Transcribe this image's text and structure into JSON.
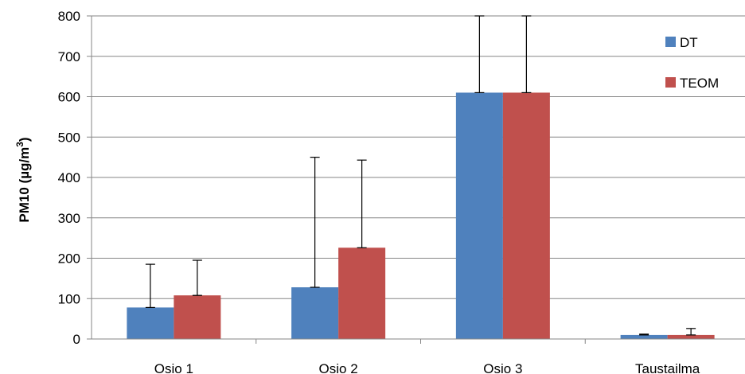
{
  "chart_data": {
    "type": "bar",
    "title": "",
    "xlabel": "",
    "ylabel": "PM10 (µg/m",
    "ylabel_superscript": "3",
    "ylabel_close": ")",
    "ylim": [
      0,
      800
    ],
    "ytick_step": 100,
    "grid": true,
    "legend_position": "top-right",
    "categories": [
      "Osio 1",
      "Osio 2",
      "Osio 3",
      "Taustailma"
    ],
    "series": [
      {
        "name": "DT",
        "color": "#4f81bd",
        "values": [
          78,
          128,
          610,
          10
        ],
        "error_upper": [
          185,
          450,
          800,
          12
        ]
      },
      {
        "name": "TEOM",
        "color": "#c0504d",
        "values": [
          108,
          226,
          610,
          10
        ],
        "error_upper": [
          195,
          443,
          800,
          26
        ]
      }
    ]
  }
}
